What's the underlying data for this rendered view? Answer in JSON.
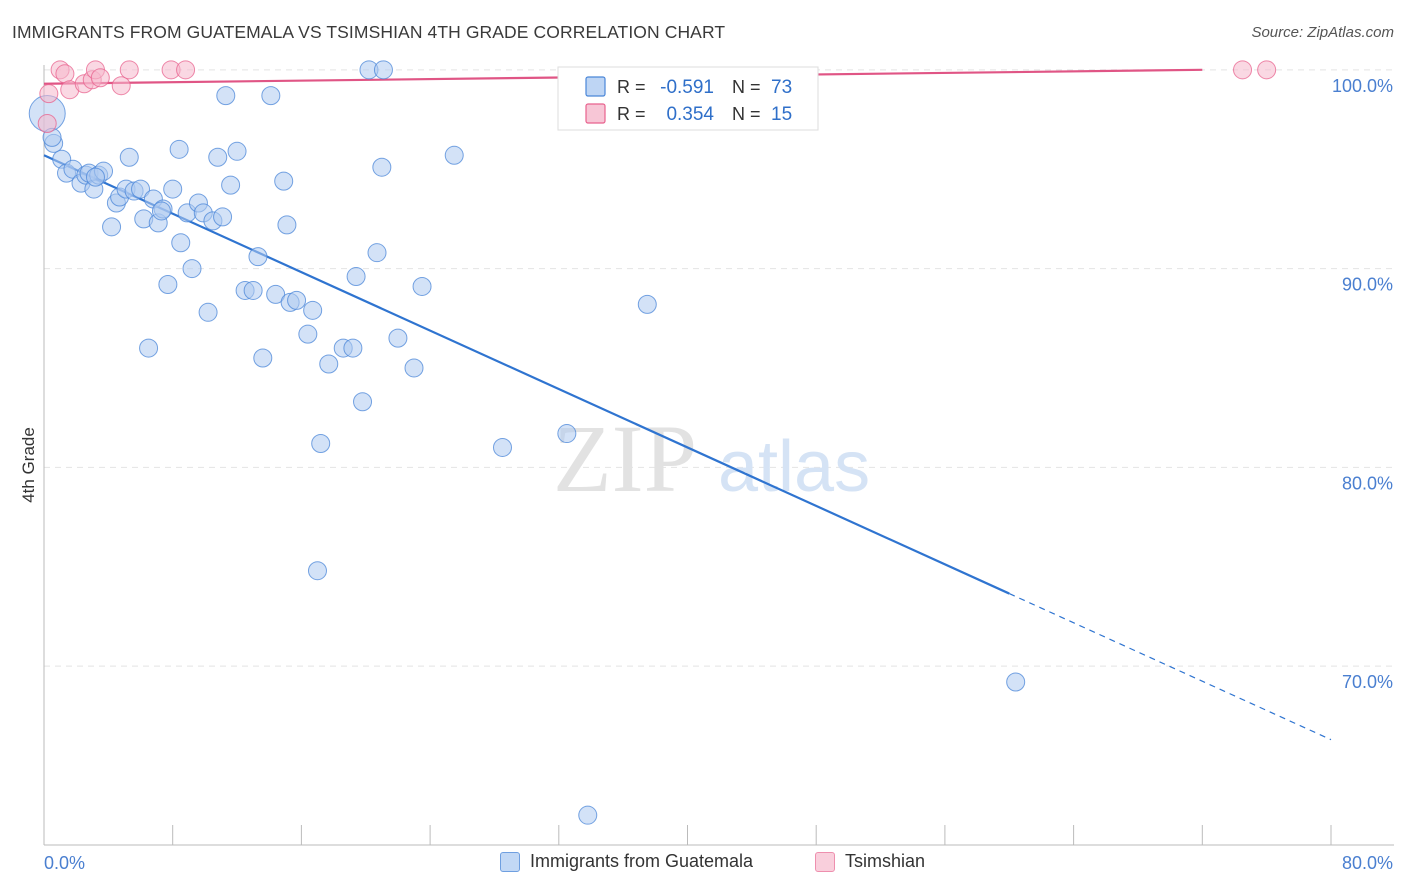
{
  "title": "IMMIGRANTS FROM GUATEMALA VS TSIMSHIAN 4TH GRADE CORRELATION CHART",
  "source": "Source: ZipAtlas.com",
  "watermark": {
    "zip": "ZIP",
    "atlas": "atlas"
  },
  "chart_data": {
    "type": "scatter",
    "xlabel": "",
    "ylabel": "4th Grade",
    "xlim": [
      0,
      80
    ],
    "ylim": [
      61,
      101.5
    ],
    "x_tick_labels": [
      "0.0%",
      "80.0%"
    ],
    "y_ticks": [
      {
        "value": 100,
        "label": "100.0%"
      },
      {
        "value": 90,
        "label": "90.0%"
      },
      {
        "value": 80,
        "label": "80.0%"
      },
      {
        "value": 70,
        "label": "70.0%"
      }
    ],
    "grid": true,
    "legend_position": "top-center",
    "series": [
      {
        "name": "Immigrants from Guatemala",
        "color": "#4a86d8",
        "fill": "#aecbf1",
        "stats": {
          "r_label": "R =",
          "r_value": "-0.591",
          "n_label": "N =",
          "n_value": "73"
        },
        "trend": {
          "x_start": 0,
          "y_start": 95.7,
          "x_end_solid": 60,
          "x_end": 80,
          "y_end": 66.3
        },
        "points": [
          [
            0.2,
            97.8
          ],
          [
            0.6,
            96.3
          ],
          [
            1.1,
            95.5
          ],
          [
            1.4,
            94.8
          ],
          [
            1.8,
            95.0
          ],
          [
            2.3,
            94.3
          ],
          [
            2.6,
            94.7
          ],
          [
            2.8,
            94.8
          ],
          [
            3.1,
            94.0
          ],
          [
            3.4,
            94.7
          ],
          [
            3.7,
            94.9
          ],
          [
            4.2,
            92.1
          ],
          [
            4.5,
            93.3
          ],
          [
            4.7,
            93.6
          ],
          [
            5.1,
            94.0
          ],
          [
            5.3,
            95.6
          ],
          [
            5.6,
            93.9
          ],
          [
            6.0,
            94.0
          ],
          [
            6.2,
            92.5
          ],
          [
            6.5,
            86.0
          ],
          [
            6.8,
            93.5
          ],
          [
            7.1,
            92.3
          ],
          [
            7.4,
            93.0
          ],
          [
            7.7,
            89.2
          ],
          [
            8.0,
            94.0
          ],
          [
            8.4,
            96.0
          ],
          [
            8.5,
            91.3
          ],
          [
            8.9,
            92.8
          ],
          [
            9.2,
            90.0
          ],
          [
            9.6,
            93.3
          ],
          [
            9.9,
            92.8
          ],
          [
            10.2,
            87.8
          ],
          [
            10.5,
            92.4
          ],
          [
            10.8,
            95.6
          ],
          [
            11.1,
            92.6
          ],
          [
            11.3,
            98.7
          ],
          [
            11.6,
            94.2
          ],
          [
            12.0,
            95.9
          ],
          [
            12.5,
            88.9
          ],
          [
            13.0,
            88.9
          ],
          [
            13.3,
            90.6
          ],
          [
            13.6,
            85.5
          ],
          [
            14.1,
            98.7
          ],
          [
            14.4,
            88.7
          ],
          [
            14.9,
            94.4
          ],
          [
            15.1,
            92.2
          ],
          [
            15.3,
            88.3
          ],
          [
            15.7,
            88.4
          ],
          [
            16.4,
            86.7
          ],
          [
            16.7,
            87.9
          ],
          [
            17.0,
            74.8
          ],
          [
            17.2,
            81.2
          ],
          [
            17.7,
            85.2
          ],
          [
            18.6,
            86.0
          ],
          [
            19.2,
            86.0
          ],
          [
            19.4,
            89.6
          ],
          [
            19.8,
            83.3
          ],
          [
            20.2,
            100.0
          ],
          [
            20.7,
            90.8
          ],
          [
            21.0,
            95.1
          ],
          [
            21.1,
            100.0
          ],
          [
            22.0,
            86.5
          ],
          [
            23.0,
            85.0
          ],
          [
            23.5,
            89.1
          ],
          [
            25.5,
            95.7
          ],
          [
            28.5,
            81.0
          ],
          [
            32.5,
            81.7
          ],
          [
            33.8,
            62.5
          ],
          [
            37.5,
            88.2
          ],
          [
            60.4,
            69.2
          ],
          [
            0.5,
            96.6
          ],
          [
            3.2,
            94.6
          ],
          [
            7.3,
            92.9
          ]
        ]
      },
      {
        "name": "Tsimshian",
        "color": "#e8628e",
        "fill": "#f5b8cc",
        "stats": {
          "r_label": "R =",
          "r_value": "0.354",
          "n_label": "N =",
          "n_value": "15"
        },
        "trend": {
          "x_start": 0,
          "y_start": 99.3,
          "x_end": 72,
          "y_end": 100.0
        },
        "points": [
          [
            0.2,
            97.3
          ],
          [
            0.3,
            98.8
          ],
          [
            1.0,
            100.0
          ],
          [
            1.3,
            99.8
          ],
          [
            1.6,
            99.0
          ],
          [
            2.5,
            99.3
          ],
          [
            3.0,
            99.5
          ],
          [
            3.2,
            100.0
          ],
          [
            3.5,
            99.6
          ],
          [
            4.8,
            99.2
          ],
          [
            5.3,
            100.0
          ],
          [
            7.9,
            100.0
          ],
          [
            8.8,
            100.0
          ],
          [
            74.5,
            100.0
          ],
          [
            76.0,
            100.0
          ]
        ]
      }
    ]
  }
}
